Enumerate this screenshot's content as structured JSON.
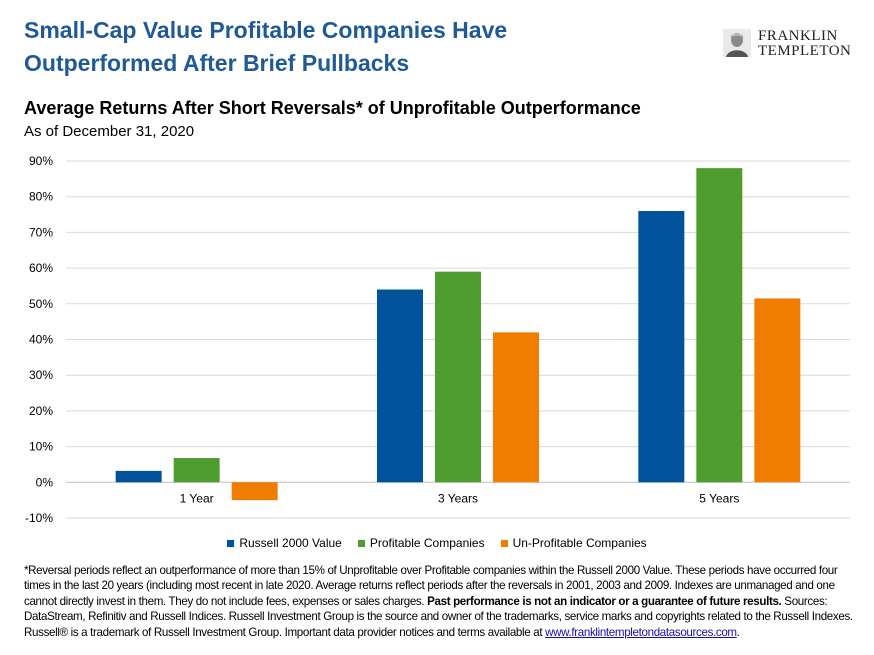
{
  "header": {
    "headline_line1": "Small-Cap Value Profitable Companies Have",
    "headline_line2": "Outperformed After Brief Pullbacks",
    "logo_line1": "FRANKLIN",
    "logo_line2": "TEMPLETON",
    "logo_icon": "portrait-seal-icon"
  },
  "colors": {
    "headline": "#1f5a96",
    "grid": "#d9d9d9",
    "axis": "#bfbfbf"
  },
  "chart_data": {
    "type": "bar",
    "title": "Average Returns After Short Reversals* of Unprofitable Outperformance",
    "subtitle": "As of December 31, 2020",
    "categories": [
      "1 Year",
      "3 Years",
      "5 Years"
    ],
    "series": [
      {
        "name": "Russell 2000 Value",
        "color": "#00529b",
        "values": [
          3.2,
          54,
          76
        ]
      },
      {
        "name": "Profitable Companies",
        "color": "#4f9d2e",
        "values": [
          6.8,
          59,
          88
        ]
      },
      {
        "name": "Un-Profitable Companies",
        "color": "#f07c00",
        "values": [
          -5,
          42,
          51.5
        ]
      }
    ],
    "ylim": [
      -10,
      90
    ],
    "yticks": [
      90,
      80,
      70,
      60,
      50,
      40,
      30,
      20,
      10,
      0,
      -10
    ],
    "ytick_labels": [
      "90%",
      "80%",
      "70%",
      "60%",
      "50%",
      "40%",
      "30%",
      "20%",
      "10%",
      "0%",
      "-10%"
    ],
    "xlabel": "",
    "ylabel": "",
    "grid": true,
    "legend_position": "bottom"
  },
  "footnote": {
    "text1": "*Reversal periods reflect an outperformance of more than 15% of Unprofitable over Profitable companies within the Russell 2000 Value. These periods have occurred four times in the last 20 years (including most recent in late 2020. Average returns reflect periods after the reversals in 2001, 2003 and 2009. Indexes are unmanaged and one cannot directly invest in them. They do not include fees, expenses or sales charges. ",
    "bold": "Past performance is not an indicator or a guarantee of future results.",
    "text2": " Sources: DataStream, Refinitiv and Russell Indices. Russell Investment Group is the source and owner of the trademarks, service marks and copyrights related to the Russell Indexes. Russell® is a trademark of Russell Investment Group. Important data provider notices and terms available at ",
    "link": "www.franklintempletondatasources.com",
    "end": "."
  }
}
